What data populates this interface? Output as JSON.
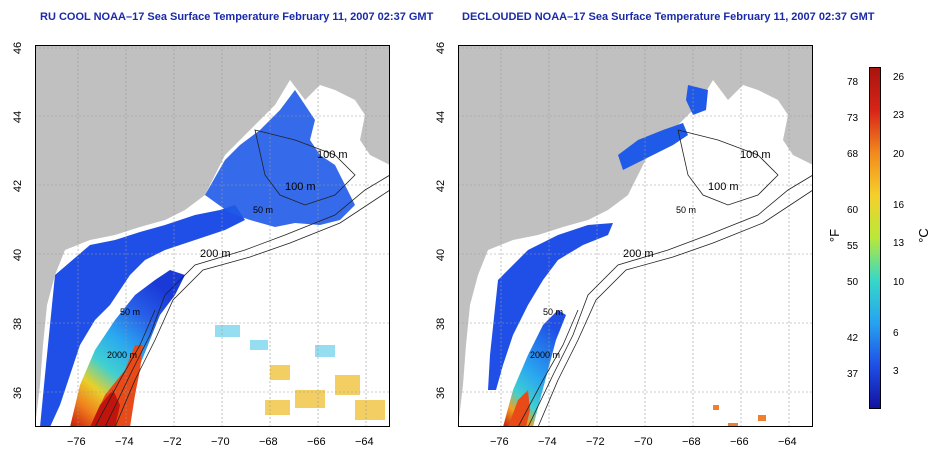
{
  "titles": {
    "left": "RU COOL NOAA–17 Sea Surface Temperature February 11, 2007 02:37 GMT",
    "right": "DECLOUDED NOAA–17 Sea Surface Temperature February 11, 2007 02:37 GMT"
  },
  "map": {
    "x_ticks": [
      "−76",
      "−74",
      "−72",
      "−70",
      "−68",
      "−66",
      "−64"
    ],
    "y_ticks": [
      "46",
      "44",
      "42",
      "40",
      "38",
      "36"
    ],
    "x_range": [
      -77,
      -63
    ],
    "y_range": [
      35,
      46
    ],
    "grid": true,
    "land_color": "#c0c0c0",
    "cloud_color": "#ffffff",
    "contours": {
      "left": [
        "100 m",
        "100 m",
        "50 m",
        "200 m",
        "50 m",
        "2000 m"
      ],
      "right": [
        "100 m",
        "100 m",
        "50 m",
        "200 m",
        "50 m",
        "2000 m"
      ]
    }
  },
  "colorbar": {
    "fahrenheit_unit": "°F",
    "celsius_unit": "°C",
    "fahrenheit_ticks": [
      "78",
      "73",
      "68",
      "60",
      "55",
      "50",
      "42",
      "37"
    ],
    "celsius_ticks": [
      "26",
      "23",
      "20",
      "16",
      "13",
      "10",
      "6",
      "3"
    ],
    "colors": [
      "#1212a0",
      "#1f4fe6",
      "#26a3f0",
      "#36d8c8",
      "#b8e83a",
      "#f5d02a",
      "#f28a1e",
      "#d82418",
      "#a8140e"
    ]
  }
}
